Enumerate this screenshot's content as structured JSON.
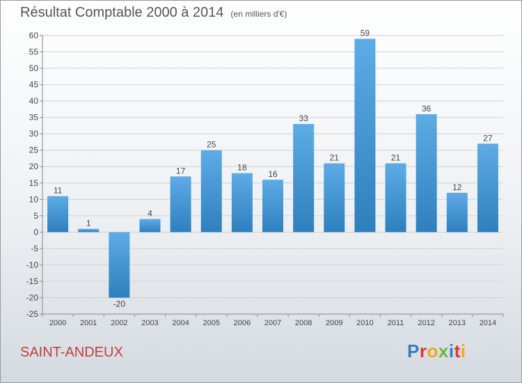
{
  "header": {
    "title": "Résultat Comptable 2000 à 2014",
    "unit": "(en milliers d'€)"
  },
  "footer": {
    "commune": "SAINT-ANDEUX",
    "brand_letters": [
      "P",
      "r",
      "o",
      "x",
      "i",
      "t",
      "i"
    ],
    "brand_colors": [
      "#2e7fc1",
      "#e0342b",
      "#f3a51b",
      "#6ab53f",
      "#2e7fc1",
      "#e0342b",
      "#f3a51b"
    ]
  },
  "colors": {
    "bar_light": "#5dace6",
    "bar_dark": "#2e7fbd",
    "grid": "#d0d0d0",
    "axis_text": "#444444",
    "commune_text": "#c0403a"
  },
  "chart_data": {
    "type": "bar",
    "title": "Résultat Comptable 2000 à 2014",
    "subtitle": "(en milliers d'€)",
    "categories": [
      "2000",
      "2001",
      "2002",
      "2003",
      "2004",
      "2005",
      "2006",
      "2007",
      "2008",
      "2009",
      "2010",
      "2011",
      "2012",
      "2013",
      "2014"
    ],
    "values": [
      11,
      1,
      -20,
      4,
      17,
      25,
      18,
      16,
      33,
      21,
      59,
      21,
      36,
      12,
      27
    ],
    "ylim": [
      -25,
      60
    ],
    "yticks": [
      60,
      55,
      50,
      45,
      40,
      35,
      30,
      25,
      20,
      15,
      10,
      5,
      0,
      -5,
      -10,
      -15,
      -20,
      -25
    ],
    "ytick_labels": [
      "60",
      "55",
      "50",
      "45",
      "40",
      "35",
      "30",
      "25",
      "20",
      "15",
      "10",
      "5",
      "0",
      "-5",
      "-10",
      "-15",
      "-20",
      "-25"
    ],
    "grid": true,
    "legend": "none"
  }
}
